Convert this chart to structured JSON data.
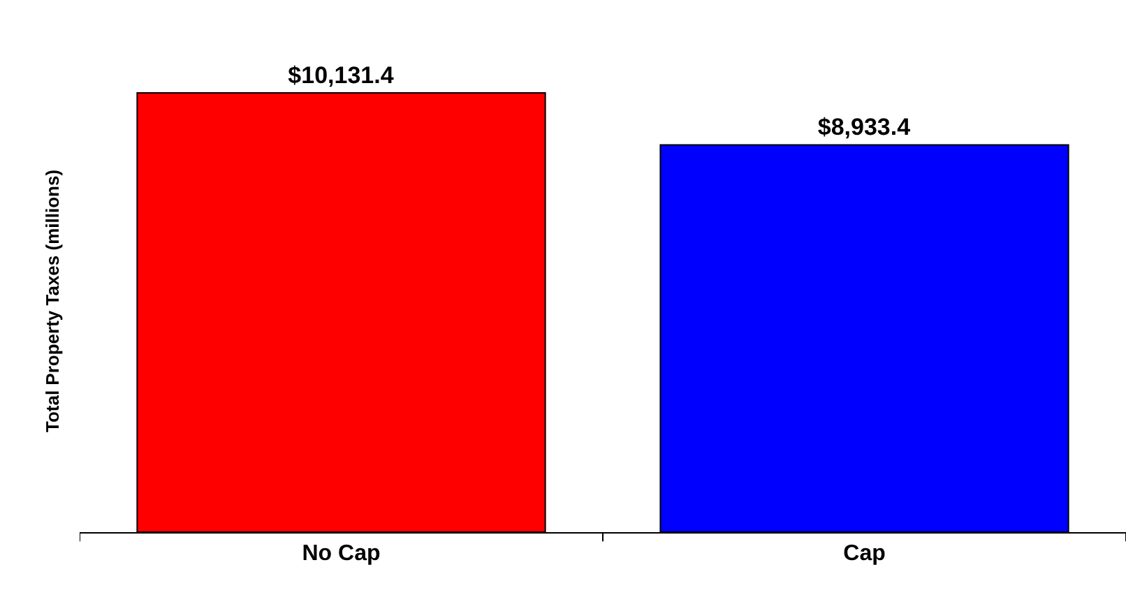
{
  "chart_data": {
    "type": "bar",
    "ylabel": "Total Property Taxes (millions)",
    "categories": [
      "No Cap",
      "Cap"
    ],
    "values": [
      10131.4,
      8933.4
    ],
    "colors": [
      "#ff0000",
      "#0000ff"
    ],
    "value_labels": [
      "$10,131.4",
      "$8,933.4"
    ],
    "tick_labels": "x",
    "grid": false,
    "legend": false
  }
}
